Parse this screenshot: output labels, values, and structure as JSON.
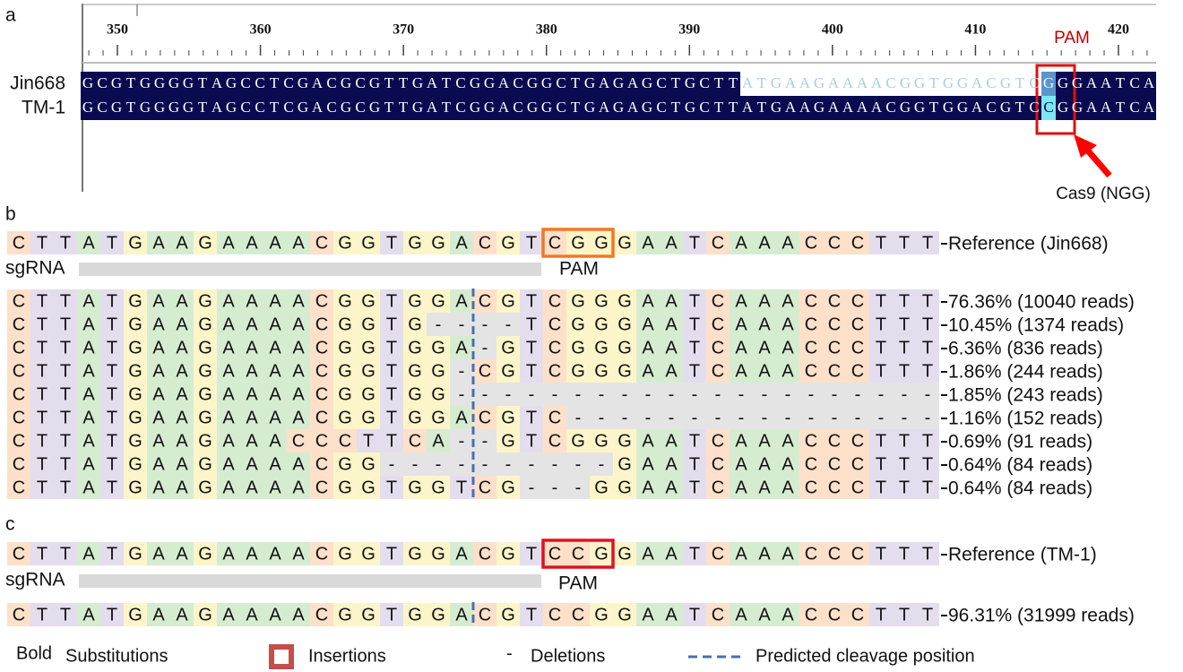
{
  "panel_a": {
    "label": "a",
    "ruler_ticks": [
      350,
      360,
      370,
      380,
      390,
      400,
      410,
      420
    ],
    "sequences": [
      {
        "name": "Jin668",
        "sequence": "GCGTGGGGTAGCCTCGACGCGTTGATCGGACGGCTGAGAGCTGCTTATGAAGAAAACGGTGGACGTCGGGAATCA"
      },
      {
        "name": "TM-1",
        "sequence": "GCGTGGGGTAGCCTCGACGCGTTGATCGGACGGCTGAGAGCTGCTTATGAAGAAAACGGTGGACGTCCGGAATCA"
      }
    ],
    "pam_label": "PAM",
    "enzyme_label": "Cas9 (NGG)"
  },
  "panel_b": {
    "label": "b",
    "reference": {
      "sequence": "CTTATGAAGAAAACGGTGGACGTCGGGAATCAAACCCTTT",
      "label": "Reference (Jin668)"
    },
    "sgrna_label": "sgRNA",
    "pam_label": "PAM",
    "reads": [
      {
        "sequence": "CTTATGAAGAAAACGGTGGACGTCGGGAATCAAACCCTTT",
        "label": "76.36% (10040 reads)"
      },
      {
        "sequence": "CTTATGAAGAAAACGGTG----TCGGGAATCAAACCCTTT",
        "label": "10.45% (1374 reads)"
      },
      {
        "sequence": "CTTATGAAGAAAACGGTGGA-GTCGGGAATCAAACCCTTT",
        "label": "6.36% (836 reads)"
      },
      {
        "sequence": "CTTATGAAGAAAACGGTGG-CGTCGGGAATCAAACCCTTT",
        "label": "1.86% (244 reads)"
      },
      {
        "sequence": "CTTATGAAGAAAACGGTGG---------------------",
        "label": "1.85% (243 reads)"
      },
      {
        "sequence": "CTTATGAAGAAAACGGTGGACGTC----------------",
        "label": "1.16% (152 reads)"
      },
      {
        "sequence": "CTTATGAAGAAACCCTTCA--GTCGGGAATCAAACCCTTT",
        "label": "0.69% (91 reads)"
      },
      {
        "sequence": "CTTATGAAGAAAACGG----------GAATCAAACCCTTT",
        "label": "0.64% (84 reads)"
      },
      {
        "sequence": "CTTATGAAGAAAACGGTGGTCG---GGAATCAAACCCTTT",
        "label": "0.64% (84 reads)"
      }
    ]
  },
  "panel_c": {
    "label": "c",
    "reference": {
      "sequence": "CTTATGAAGAAAACGGTGGACGTCCGGAATCAAACCCTTT",
      "label": "Reference (TM-1)"
    },
    "sgrna_label": "sgRNA",
    "pam_label": "PAM",
    "reads": [
      {
        "sequence": "CTTATGAAGAAAACGGTGGACGTCCGGAATCAAACCCTTT",
        "label": "96.31% (31999 reads)"
      }
    ]
  },
  "legend": {
    "bold": "Bold",
    "substitutions": "Substitutions",
    "insertions": "Insertions",
    "deletion_symbol": "-",
    "deletions": "Deletions",
    "cleavage": "Predicted cleavage position"
  }
}
